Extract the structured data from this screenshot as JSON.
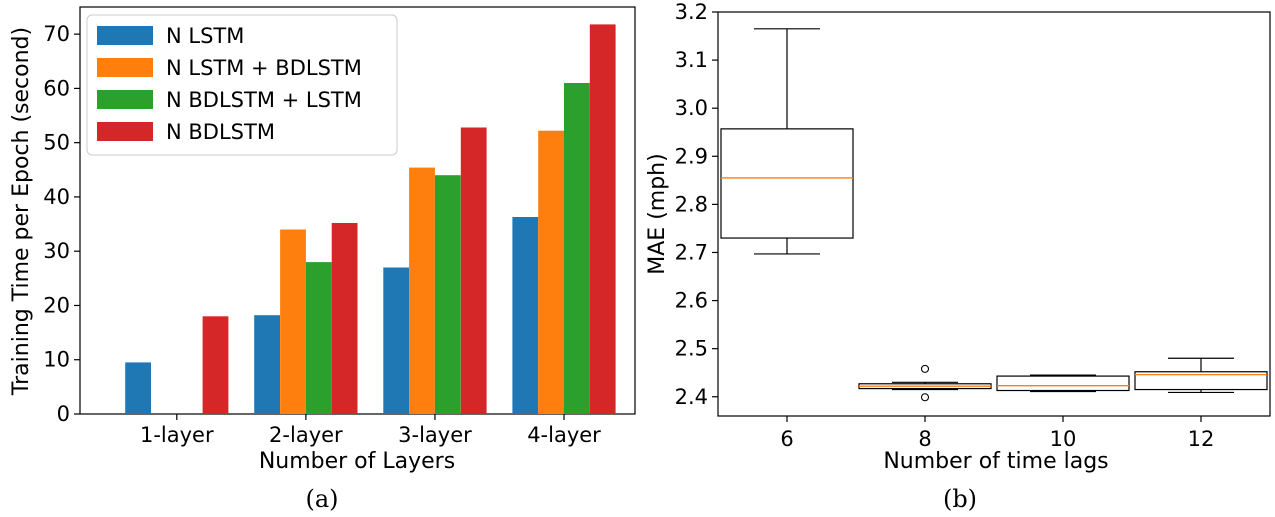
{
  "chart_data": [
    {
      "type": "bar",
      "categories": [
        "1-layer",
        "2-layer",
        "3-layer",
        "4-layer"
      ],
      "series": [
        {
          "name": "N LSTM",
          "color": "#1f77b4",
          "values": [
            9.5,
            18.2,
            27.0,
            36.3
          ]
        },
        {
          "name": "N LSTM + BDLSTM",
          "color": "#ff7f0e",
          "values": [
            0,
            34.0,
            45.4,
            52.2
          ]
        },
        {
          "name": "N BDLSTM + LSTM",
          "color": "#2ca02c",
          "values": [
            0,
            28.0,
            44.0,
            61.0
          ]
        },
        {
          "name": "N BDLSTM",
          "color": "#d62728",
          "values": [
            18.0,
            35.2,
            52.8,
            71.8
          ]
        }
      ],
      "xlabel": "Number of Layers",
      "ylabel": "Training Time per Epoch (second)",
      "ylim": [
        0,
        75
      ],
      "yticks": [
        0,
        10,
        20,
        30,
        40,
        50,
        60,
        70
      ],
      "legend": "top-left",
      "caption": "(a)"
    },
    {
      "type": "box",
      "categories": [
        "6",
        "8",
        "10",
        "12"
      ],
      "boxes": [
        {
          "whislo": 2.697,
          "q1": 2.73,
          "med": 2.855,
          "q3": 2.957,
          "whishi": 3.165,
          "fliers": []
        },
        {
          "whislo": 2.415,
          "q1": 2.417,
          "med": 2.422,
          "q3": 2.427,
          "whishi": 2.43,
          "fliers": [
            2.458,
            2.399
          ]
        },
        {
          "whislo": 2.411,
          "q1": 2.413,
          "med": 2.423,
          "q3": 2.443,
          "whishi": 2.445,
          "fliers": []
        },
        {
          "whislo": 2.409,
          "q1": 2.415,
          "med": 2.446,
          "q3": 2.452,
          "whishi": 2.48,
          "fliers": []
        }
      ],
      "xlabel": "Number  of  time  lags",
      "ylabel": "MAE (mph)",
      "ylim": [
        2.36,
        3.2
      ],
      "yticks": [
        "2.4",
        "2.5",
        "2.6",
        "2.7",
        "2.8",
        "2.9",
        "3.0",
        "3.1",
        "3.2"
      ],
      "median_color": "#ff7f0e",
      "caption": "(b)"
    }
  ]
}
